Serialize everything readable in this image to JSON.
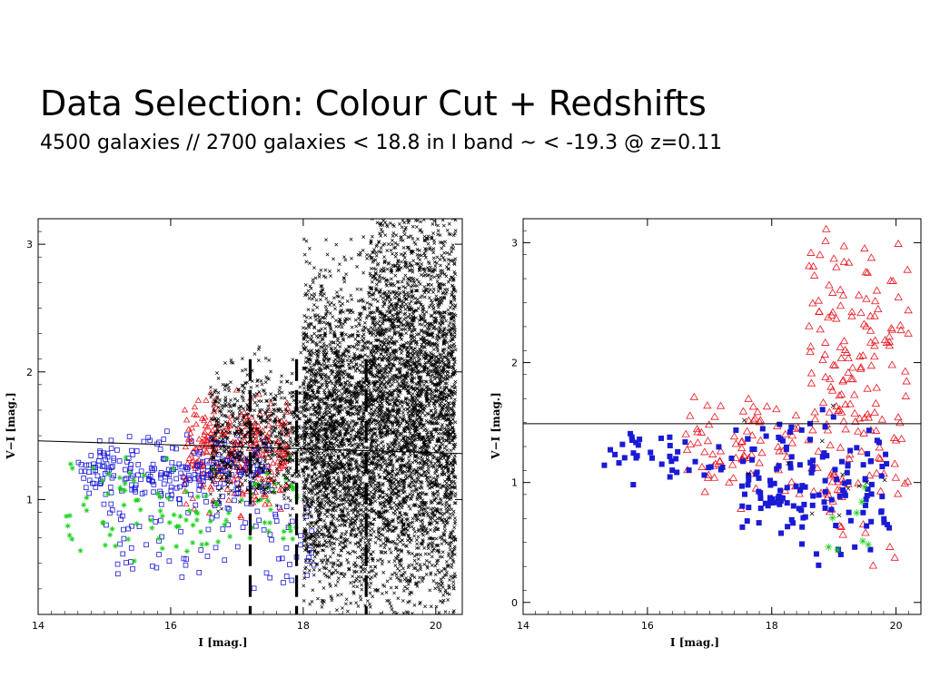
{
  "slide": {
    "title": "Data Selection: Colour Cut + Redshifts",
    "subtitle": "4500 galaxies // 2700 galaxies < 18.8 in I band ~ < -19.3 @ z=0.11"
  },
  "chart_data": [
    {
      "type": "scatter",
      "xlabel": "I [mag.]",
      "ylabel": "V−I [mag.]",
      "xlim": [
        14,
        20.4
      ],
      "ylim": [
        0.1,
        3.2
      ],
      "xticks": [
        14,
        16,
        18,
        20
      ],
      "yticks": [
        1,
        2,
        3
      ],
      "colour_cut": {
        "x": [
          14,
          20.4
        ],
        "y": [
          1.46,
          1.36
        ]
      },
      "magnitude_limits": [
        17.2,
        17.9,
        18.95
      ],
      "colors": {
        "red": "#e8141e",
        "blue": "#1a1ad6",
        "green": "#16d016",
        "black": "#000000"
      },
      "series": [
        {
          "marker": "triangle",
          "color": "red",
          "cloud": [
            [
              16.2,
              17.8,
              1.0,
              1.75,
              300
            ]
          ]
        },
        {
          "marker": "square",
          "color": "blue",
          "cloud": [
            [
              14.6,
              17.5,
              1.0,
              1.45,
              260
            ],
            [
              15.0,
              18.2,
              0.3,
              1.0,
              90
            ]
          ]
        },
        {
          "marker": "star",
          "color": "green",
          "cloud": [
            [
              14.4,
              18.0,
              0.5,
              1.3,
              110
            ]
          ]
        },
        {
          "marker": "cross",
          "color": "black",
          "cloud": [
            [
              16.6,
              18.0,
              1.0,
              2.0,
              700
            ],
            [
              18.0,
              19.0,
              0.35,
              2.6,
              2400
            ],
            [
              19.0,
              20.3,
              0.3,
              3.2,
              3800
            ]
          ]
        }
      ]
    },
    {
      "type": "scatter",
      "xlabel": "I [mag.]",
      "ylabel": "V−I [mag.]",
      "xlim": [
        14,
        20.4
      ],
      "ylim": [
        -0.1,
        3.2
      ],
      "xticks": [
        14,
        16,
        18,
        20
      ],
      "yticks": [
        0,
        1,
        2,
        3
      ],
      "colour_cut": {
        "x": [
          14,
          20.4
        ],
        "y": [
          1.49,
          1.49
        ]
      },
      "series": [
        {
          "marker": "triangle",
          "color": "red",
          "cloud": [
            [
              16.6,
              18.6,
              0.9,
              1.7,
              80
            ],
            [
              18.6,
              20.2,
              0.5,
              3.1,
              190
            ]
          ]
        },
        {
          "marker": "filled-square",
          "color": "blue",
          "cloud": [
            [
              15.3,
              17.5,
              0.95,
              1.45,
              40
            ],
            [
              17.5,
              19.9,
              0.5,
              1.5,
              150
            ]
          ]
        },
        {
          "marker": "star",
          "color": "green",
          "cloud": [
            [
              18.6,
              19.7,
              0.4,
              0.95,
              8
            ]
          ]
        },
        {
          "marker": "cross",
          "color": "black",
          "cloud": [
            [
              17.2,
              20.2,
              0.35,
              1.65,
              12
            ]
          ]
        }
      ]
    }
  ]
}
